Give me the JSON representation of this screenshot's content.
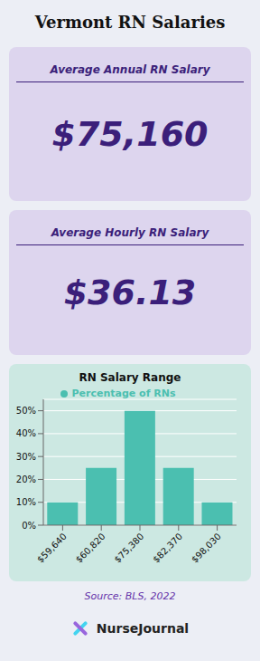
{
  "chart_data": {
    "type": "bar",
    "title": "Vermont RN Salaries",
    "subtitle": "RN Salary Range",
    "annotations": [
      "Average Annual RN Salary",
      "$75,160",
      "Average Hourly RN Salary",
      "$36.13",
      "Source: BLS, 2022",
      "NurseJournal"
    ],
    "categories": [
      "$59,640",
      "$60,820",
      "$75,380",
      "$82,370",
      "$98,030"
    ],
    "series": [
      {
        "name": "Percentage of RNs",
        "color": "#4bbfb0",
        "values": [
          10,
          25,
          50,
          25,
          10
        ]
      }
    ],
    "ylim": [
      0,
      55
    ],
    "yticks": [
      {
        "value": 0,
        "label": "0%"
      },
      {
        "value": 10,
        "label": "10%"
      },
      {
        "value": 20,
        "label": "20%"
      },
      {
        "value": 30,
        "label": "30%"
      },
      {
        "value": 40,
        "label": "40%"
      },
      {
        "value": 50,
        "label": "50%"
      }
    ],
    "grid": true,
    "legend": "top"
  }
}
